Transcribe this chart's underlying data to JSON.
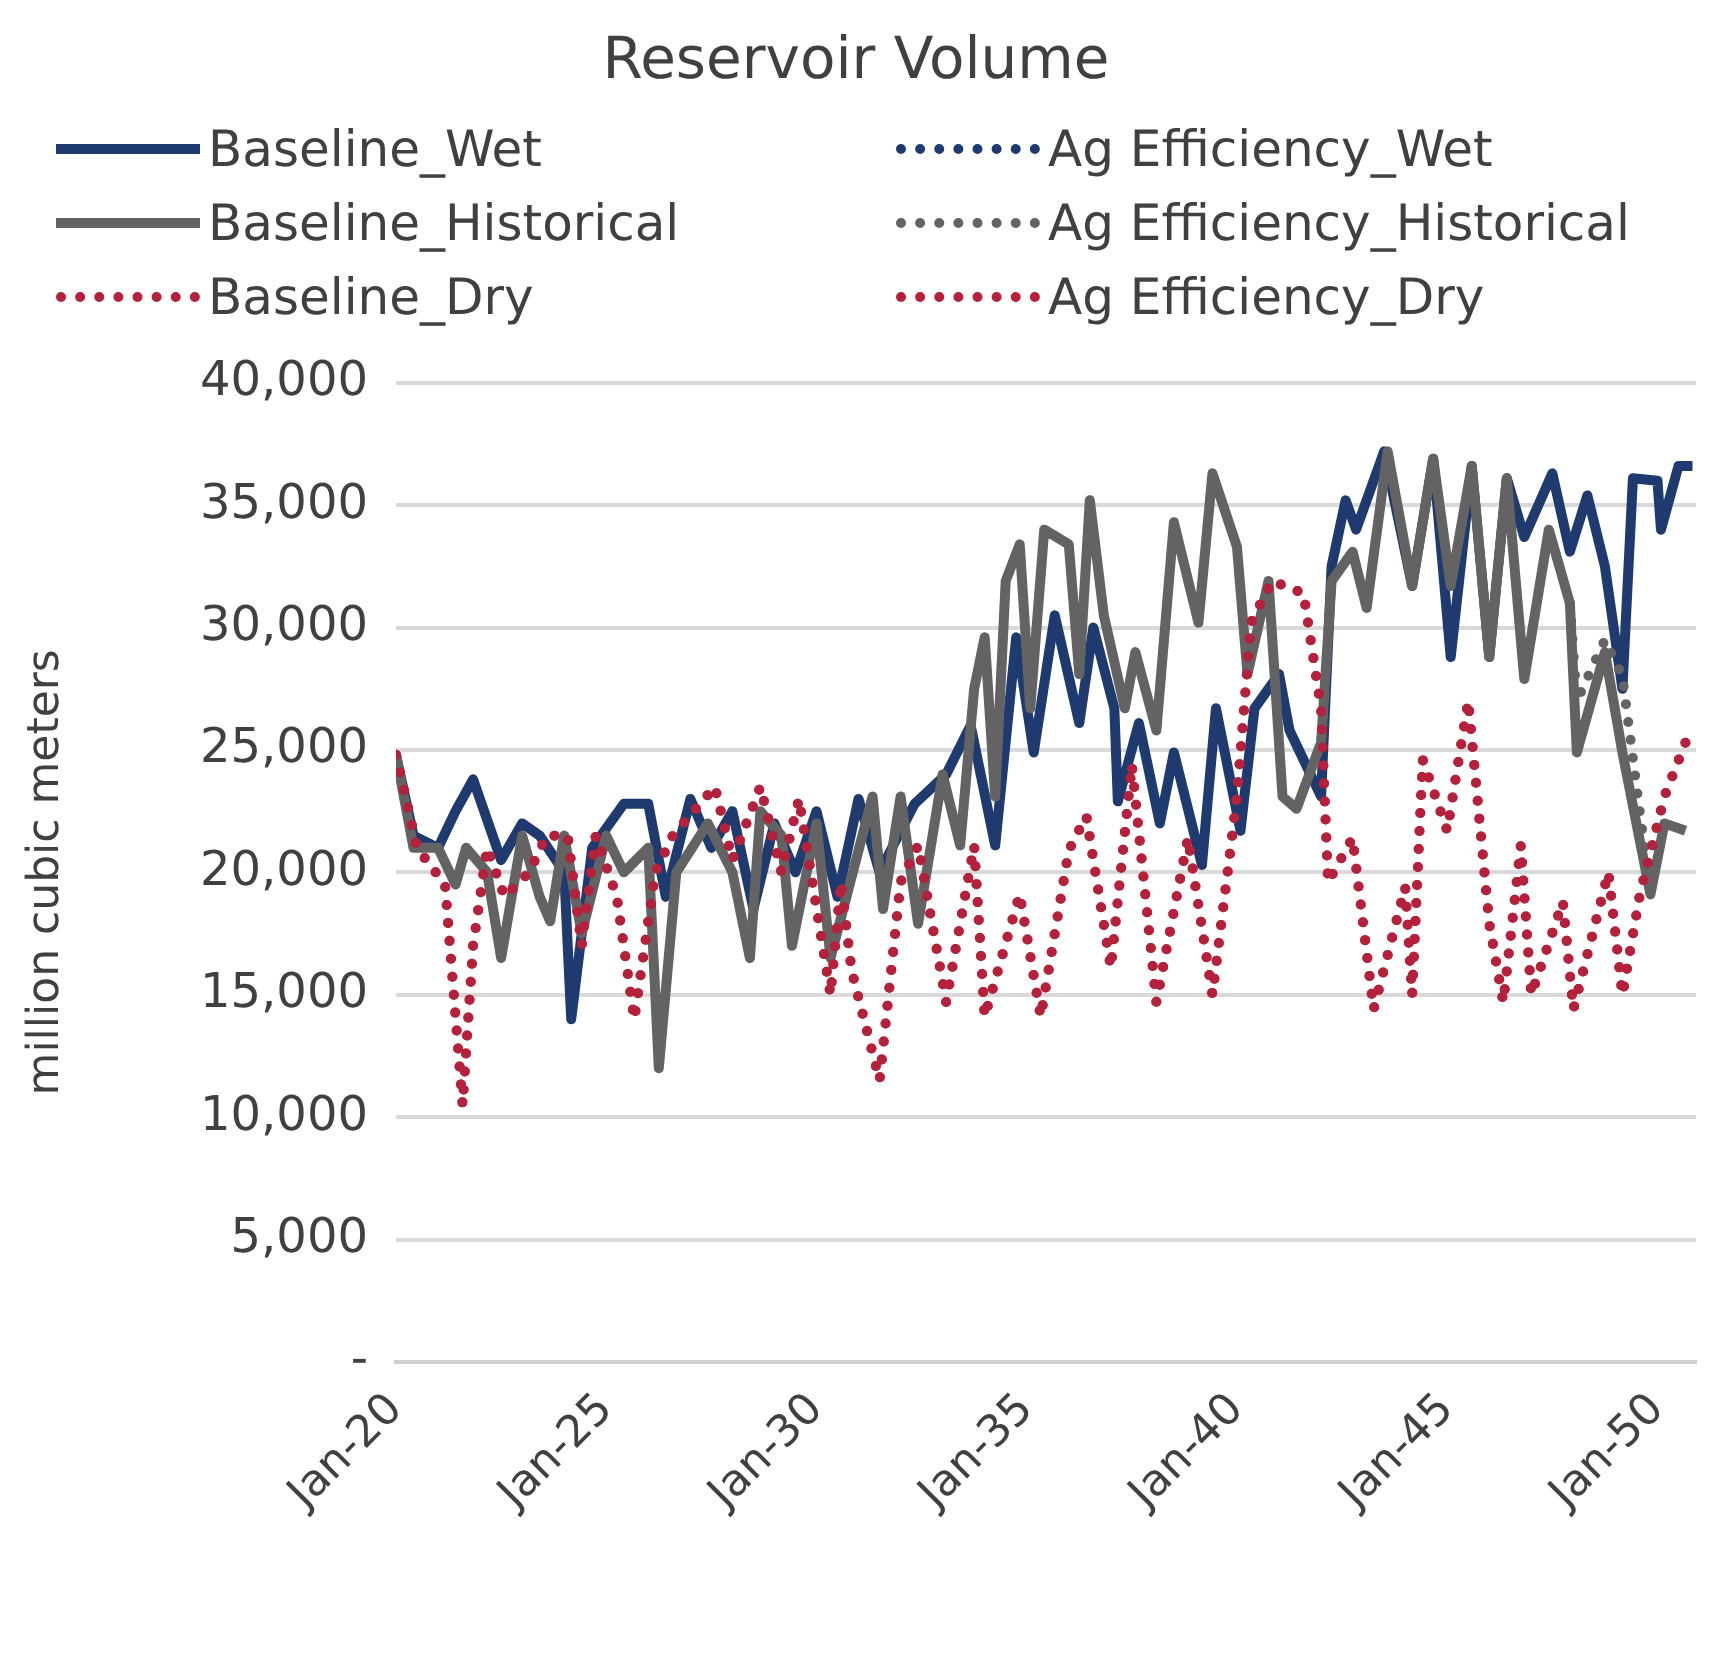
{
  "chart_data": {
    "type": "line",
    "title": "Reservoir Volume",
    "ylabel": "million cubic meters",
    "legend": "top",
    "grid": "y",
    "marker": "none",
    "xlim": [
      "2020-01",
      "2050-12"
    ],
    "xticks": [
      {
        "value": "2020-01",
        "label": "Jan-20"
      },
      {
        "value": "2025-01",
        "label": "Jan-25"
      },
      {
        "value": "2030-01",
        "label": "Jan-30"
      },
      {
        "value": "2035-01",
        "label": "Jan-35"
      },
      {
        "value": "2040-01",
        "label": "Jan-40"
      },
      {
        "value": "2045-01",
        "label": "Jan-45"
      },
      {
        "value": "2050-01",
        "label": "Jan-50"
      }
    ],
    "ylim": [
      0,
      40000
    ],
    "yticks": [
      {
        "value": 0,
        "label": "-"
      },
      {
        "value": 5000,
        "label": "5,000"
      },
      {
        "value": 10000,
        "label": "10,000"
      },
      {
        "value": 15000,
        "label": "15,000"
      },
      {
        "value": 20000,
        "label": "20,000"
      },
      {
        "value": 25000,
        "label": "25,000"
      },
      {
        "value": 30000,
        "label": "30,000"
      },
      {
        "value": 35000,
        "label": "35,000"
      },
      {
        "value": 40000,
        "label": "40,000"
      }
    ],
    "series": [
      {
        "name": "Baseline_Wet",
        "color": "#1f3a6e",
        "line_style": "solid",
        "x": [
          "2020-01",
          "2020-06",
          "2021-01",
          "2021-06",
          "2021-11",
          "2022-07",
          "2023-01",
          "2023-06",
          "2024-01",
          "2024-03",
          "2024-09",
          "2025-06",
          "2026-01",
          "2026-06",
          "2027-01",
          "2027-07",
          "2028-01",
          "2028-07",
          "2029-01",
          "2029-07",
          "2030-01",
          "2030-07",
          "2031-01",
          "2031-07",
          "2032-05",
          "2033-02",
          "2033-09",
          "2034-04",
          "2034-10",
          "2035-03",
          "2035-09",
          "2036-04",
          "2036-08",
          "2037-02",
          "2037-03",
          "2037-09",
          "2038-03",
          "2038-07",
          "2039-03",
          "2039-07",
          "2040-02",
          "2040-06",
          "2041-01",
          "2041-04",
          "2042-01",
          "2042-04",
          "2042-08",
          "2042-11",
          "2043-07",
          "2044-03",
          "2044-09",
          "2045-02",
          "2045-08",
          "2046-01",
          "2046-06",
          "2046-11",
          "2047-07",
          "2047-12",
          "2048-05",
          "2048-10",
          "2049-03",
          "2049-06",
          "2050-01",
          "2050-02",
          "2050-07",
          "2050-11"
        ],
        "values": [
          24800,
          21500,
          21000,
          22500,
          23800,
          20500,
          22000,
          21500,
          20000,
          14000,
          21000,
          22800,
          22800,
          19000,
          23000,
          21000,
          22500,
          18500,
          22000,
          20000,
          22500,
          19000,
          23000,
          20000,
          22800,
          24000,
          26000,
          21100,
          29600,
          24900,
          30500,
          26100,
          30000,
          26700,
          22900,
          26100,
          22000,
          24900,
          20300,
          26700,
          21700,
          26700,
          28100,
          25800,
          23100,
          32500,
          35200,
          34000,
          37200,
          31700,
          36900,
          28800,
          36600,
          28800,
          36100,
          33700,
          36300,
          33100,
          35400,
          32500,
          27500,
          36100,
          36000,
          34000,
          36600,
          36600
        ]
      },
      {
        "name": "Ag Efficiency_Wet",
        "color": "#1f3a6e",
        "line_style": "dotted"
      },
      {
        "name": "Baseline_Historical",
        "color": "#636363",
        "line_style": "solid",
        "x": [
          "2020-01",
          "2020-06",
          "2021-01",
          "2021-06",
          "2021-09",
          "2022-03",
          "2022-07",
          "2023-01",
          "2023-06",
          "2023-09",
          "2024-01",
          "2024-06",
          "2025-01",
          "2025-06",
          "2026-01",
          "2026-04",
          "2026-09",
          "2027-06",
          "2028-01",
          "2028-06",
          "2028-09",
          "2029-03",
          "2029-06",
          "2030-01",
          "2030-05",
          "2031-05",
          "2031-08",
          "2032-01",
          "2032-06",
          "2033-01",
          "2033-06",
          "2033-10",
          "2034-01",
          "2034-04",
          "2034-07",
          "2034-11",
          "2035-02",
          "2035-06",
          "2036-01",
          "2036-04",
          "2036-07",
          "2036-11",
          "2037-05",
          "2037-08",
          "2038-02",
          "2038-07",
          "2039-02",
          "2039-06",
          "2040-01",
          "2040-04",
          "2040-10",
          "2041-02",
          "2041-06",
          "2042-01",
          "2042-04",
          "2042-10",
          "2043-02",
          "2043-08",
          "2044-03",
          "2044-09",
          "2045-02",
          "2045-08",
          "2046-01",
          "2046-06",
          "2046-11",
          "2047-06",
          "2047-12",
          "2048-02",
          "2048-10",
          "2049-03",
          "2049-11",
          "2050-03",
          "2050-09"
        ],
        "values": [
          24800,
          21000,
          21000,
          19500,
          21000,
          20000,
          16500,
          21500,
          19000,
          18000,
          21500,
          17500,
          21500,
          20000,
          21000,
          12000,
          20000,
          22000,
          20000,
          16500,
          22500,
          21500,
          17000,
          22000,
          16500,
          23100,
          18500,
          23100,
          17900,
          24000,
          21100,
          27500,
          29600,
          23100,
          31900,
          33400,
          26700,
          34000,
          33400,
          28100,
          35200,
          30500,
          26700,
          29000,
          25800,
          34300,
          30200,
          36300,
          33300,
          28100,
          31900,
          23100,
          22600,
          25300,
          31900,
          33100,
          30800,
          37200,
          31700,
          36900,
          31700,
          36600,
          28800,
          36100,
          27900,
          34000,
          31000,
          24900,
          29000,
          24900,
          19100,
          22000,
          21700
        ]
      },
      {
        "name": "Ag Efficiency_Historical",
        "color": "#636363",
        "line_style": "dotted",
        "x": [
          "2047-12",
          "2048-02",
          "2048-10",
          "2049-03",
          "2049-11"
        ],
        "values": [
          31000,
          27000,
          29500,
          28000,
          19100
        ]
      },
      {
        "name": "Baseline_Dry",
        "color": "#b5203a",
        "line_style": "dotted",
        "x": [
          "2020-01",
          "2020-07",
          "2021-03",
          "2021-08",
          "2021-11",
          "2022-03",
          "2022-08",
          "2023-03",
          "2023-08",
          "2024-02",
          "2024-06",
          "2024-10",
          "2025-04",
          "2025-09",
          "2026-03",
          "2026-08",
          "2027-08",
          "2028-01",
          "2028-09",
          "2029-03",
          "2029-08",
          "2030-05",
          "2030-08",
          "2030-11",
          "2031-07",
          "2032-01",
          "2032-06",
          "2033-02",
          "2033-10",
          "2034-01",
          "2034-11",
          "2035-05",
          "2036-01",
          "2036-06",
          "2037-01",
          "2037-07",
          "2038-02",
          "2038-11",
          "2039-06",
          "2040-01",
          "2040-05",
          "2040-11",
          "2041-08",
          "2042-01",
          "2042-03",
          "2042-10",
          "2043-04",
          "2044-01",
          "2044-03",
          "2044-06",
          "2045-01",
          "2045-07",
          "2046-01",
          "2046-05",
          "2046-10",
          "2047-01",
          "2047-10",
          "2048-01",
          "2048-11",
          "2049-03",
          "2049-08",
          "2050-03",
          "2050-09"
        ],
        "values": [
          24800,
          21000,
          19500,
          10500,
          17000,
          21000,
          19000,
          20000,
          21500,
          21500,
          17000,
          21500,
          19000,
          14000,
          20000,
          21500,
          23500,
          20500,
          23500,
          20000,
          23000,
          15000,
          19600,
          16000,
          11500,
          19600,
          21100,
          14700,
          21100,
          14100,
          19100,
          14100,
          20900,
          22300,
          16100,
          24400,
          14700,
          21400,
          15000,
          23100,
          30200,
          31900,
          31400,
          26700,
          19600,
          21400,
          14400,
          19400,
          15000,
          24600,
          21700,
          27000,
          17900,
          14700,
          21100,
          15000,
          18800,
          14400,
          20000,
          15000,
          19100,
          23100,
          25300
        ]
      },
      {
        "name": "Ag Efficiency_Dry",
        "color": "#b5203a",
        "line_style": "dotted",
        "x": [
          "2020-01",
          "2020-07",
          "2021-03",
          "2021-08",
          "2021-11",
          "2022-03",
          "2022-08",
          "2023-03",
          "2023-08",
          "2024-02",
          "2024-06",
          "2024-10",
          "2025-04",
          "2025-09",
          "2026-03",
          "2026-08",
          "2027-08",
          "2028-01",
          "2028-09",
          "2029-03",
          "2029-08",
          "2030-05",
          "2030-08",
          "2030-11",
          "2031-07",
          "2032-01",
          "2032-06",
          "2033-02",
          "2033-10",
          "2034-01",
          "2034-11",
          "2035-05",
          "2036-01",
          "2036-06",
          "2037-01",
          "2037-07",
          "2038-02",
          "2038-11",
          "2039-06",
          "2040-01",
          "2040-05",
          "2040-11",
          "2041-08",
          "2042-01",
          "2042-03",
          "2042-10",
          "2043-04",
          "2044-01",
          "2044-03",
          "2044-06",
          "2045-01",
          "2045-07",
          "2046-01",
          "2046-05",
          "2046-10",
          "2047-01",
          "2047-10",
          "2048-01",
          "2048-11",
          "2049-03",
          "2049-08",
          "2050-03",
          "2050-09"
        ],
        "values": [
          24800,
          21000,
          19500,
          10500,
          17000,
          21000,
          19000,
          20000,
          21500,
          21500,
          17000,
          21500,
          19000,
          14000,
          20000,
          21500,
          23500,
          20500,
          23500,
          20000,
          23000,
          15000,
          19600,
          16000,
          11500,
          19600,
          21100,
          14700,
          21100,
          14100,
          19100,
          14100,
          20900,
          22300,
          16100,
          24400,
          14700,
          21400,
          15000,
          23100,
          30200,
          31900,
          31400,
          26700,
          19600,
          21400,
          14400,
          19400,
          15000,
          24600,
          21700,
          27000,
          17900,
          14700,
          21100,
          15000,
          18800,
          14400,
          20000,
          15000,
          19100,
          23100,
          25300
        ]
      }
    ]
  }
}
